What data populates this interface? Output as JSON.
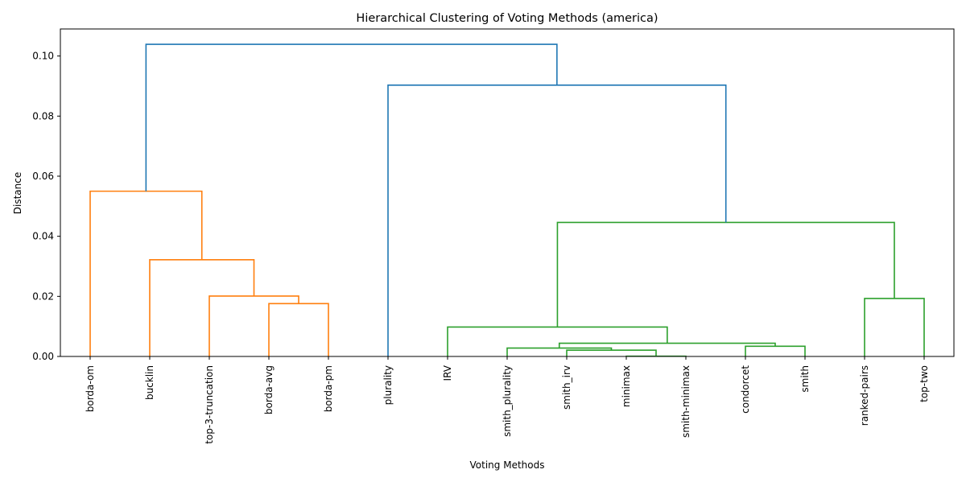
{
  "chart_data": {
    "type": "dendrogram",
    "title": "Hierarchical Clustering of Voting Methods (america)",
    "xlabel": "Voting Methods",
    "ylabel": "Distance",
    "ylim": [
      0,
      0.109
    ],
    "yticks": [
      0.0,
      0.02,
      0.04,
      0.06,
      0.08,
      0.1
    ],
    "ytick_labels": [
      "0.00",
      "0.02",
      "0.04",
      "0.06",
      "0.08",
      "0.10"
    ],
    "grid": false,
    "leaves": [
      "borda-om",
      "bucklin",
      "top-3-truncation",
      "borda-avg",
      "borda-pm",
      "plurality",
      "IRV",
      "smith_plurality",
      "smith_irv",
      "minimax",
      "smith-minimax",
      "condorcet",
      "smith",
      "ranked-pairs",
      "top-two"
    ],
    "colors": {
      "above_threshold": "#1f77b4",
      "cluster_1": "#ff7f0e",
      "cluster_2": "#2ca02c"
    },
    "merges": [
      {
        "id": "m1",
        "left": "borda-avg",
        "right": "borda-pm",
        "height": 0.0176,
        "color": "cluster_1"
      },
      {
        "id": "m2",
        "left": "top-3-truncation",
        "right": "m1",
        "height": 0.0201,
        "color": "cluster_1"
      },
      {
        "id": "m3",
        "left": "bucklin",
        "right": "m2",
        "height": 0.0322,
        "color": "cluster_1"
      },
      {
        "id": "m4",
        "left": "borda-om",
        "right": "m3",
        "height": 0.055,
        "color": "cluster_1"
      },
      {
        "id": "m5",
        "left": "minimax",
        "right": "smith-minimax",
        "height": 0.0001,
        "color": "cluster_2"
      },
      {
        "id": "m6",
        "left": "smith_irv",
        "right": "m5",
        "height": 0.0021,
        "color": "cluster_2"
      },
      {
        "id": "m7",
        "left": "smith_plurality",
        "right": "m6",
        "height": 0.0028,
        "color": "cluster_2"
      },
      {
        "id": "m8",
        "left": "condorcet",
        "right": "smith",
        "height": 0.0034,
        "color": "cluster_2"
      },
      {
        "id": "m9",
        "left": "m7",
        "right": "m8",
        "height": 0.0044,
        "color": "cluster_2"
      },
      {
        "id": "m10",
        "left": "IRV",
        "right": "m9",
        "height": 0.0098,
        "color": "cluster_2"
      },
      {
        "id": "m11",
        "left": "ranked-pairs",
        "right": "top-two",
        "height": 0.0193,
        "color": "cluster_2"
      },
      {
        "id": "m12",
        "left": "m10",
        "right": "m11",
        "height": 0.0446,
        "color": "cluster_2"
      },
      {
        "id": "m13",
        "left": "plurality",
        "right": "m12",
        "height": 0.0903,
        "color": "above_threshold"
      },
      {
        "id": "m14",
        "left": "m4",
        "right": "m13",
        "height": 0.1039,
        "color": "above_threshold"
      }
    ]
  }
}
